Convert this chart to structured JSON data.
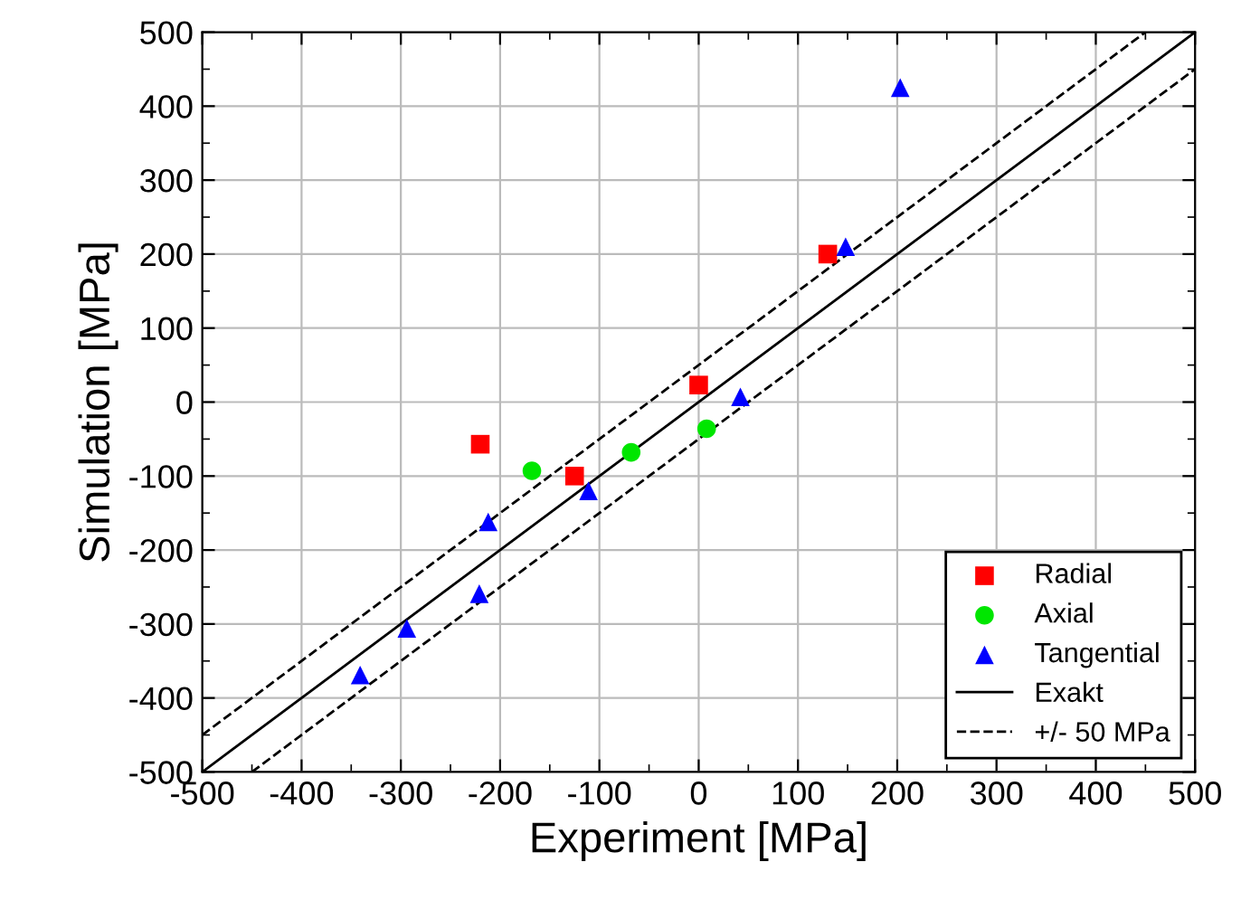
{
  "chart_data": {
    "type": "scatter",
    "xlabel": "Experiment [MPa]",
    "ylabel": "Simulation [MPa]",
    "xlim": [
      -500,
      500
    ],
    "ylim": [
      -500,
      500
    ],
    "xticks": [
      -500,
      -400,
      -300,
      -200,
      -100,
      0,
      100,
      200,
      300,
      400,
      500
    ],
    "yticks": [
      -500,
      -400,
      -300,
      -200,
      -100,
      0,
      100,
      200,
      300,
      400,
      500
    ],
    "grid": true,
    "legend": "bottom right",
    "series": [
      {
        "name": "Radial",
        "marker": "square",
        "color": "#ff0000",
        "x": [
          -220,
          -125,
          0,
          130
        ],
        "values": [
          -57,
          -100,
          23,
          200
        ]
      },
      {
        "name": "Axial",
        "marker": "circle",
        "color": "#00e600",
        "x": [
          -168,
          -68,
          8
        ],
        "values": [
          -93,
          -68,
          -36
        ]
      },
      {
        "name": "Tangential",
        "marker": "triangle",
        "color": "#0000ff",
        "x": [
          -341,
          -294,
          -221,
          -212,
          -111,
          42,
          148,
          203
        ],
        "values": [
          -369,
          -306,
          -259,
          -162,
          -120,
          7,
          210,
          425
        ]
      },
      {
        "name": "Exakt",
        "type": "line",
        "line_style": "solid",
        "color": "#000000",
        "x": [
          -500,
          500
        ],
        "values": [
          -500,
          500
        ]
      },
      {
        "name": "+/- 50 MPa",
        "type": "line",
        "line_style": "dashed",
        "color": "#000000",
        "x": [
          -500,
          450,
          null,
          -450,
          500
        ],
        "values": [
          -450,
          500,
          null,
          -500,
          450
        ]
      }
    ]
  }
}
